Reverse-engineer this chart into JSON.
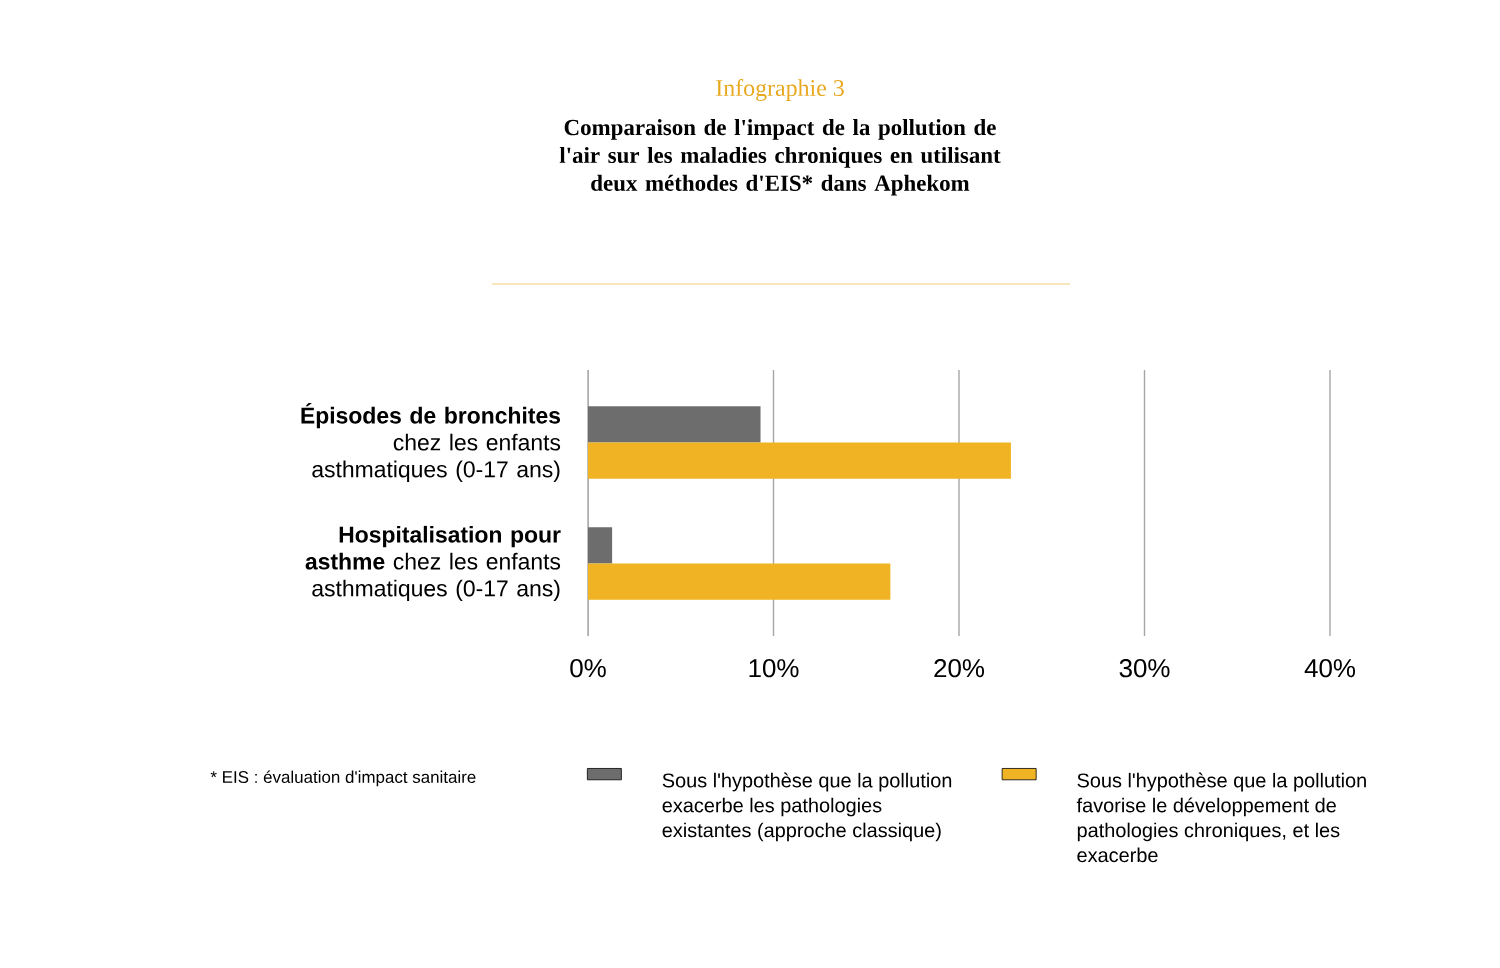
{
  "chart_data": {
    "type": "bar",
    "orientation": "horizontal",
    "title": "Infographie 3",
    "subtitle": "Comparaison de l'impact de la pollution de l'air sur les maladies chroniques en utilisant deux méthodes d'EIS* dans Aphekom",
    "categories": [
      "**Épisodes de bronchites** chez les enfants asthmatiques (0-17 ans)",
      "**Hospitalisation pour asthme** chez les enfants asthmatiques (0-17 ans)"
    ],
    "series": [
      {
        "name": "Sous l'hypothèse que la pollution exacerbe les pathologies existantes (approche classique)",
        "color": "#6d6d6d",
        "values": [
          9.3,
          1.3
        ]
      },
      {
        "name": "Sous l'hypothèse que la pollution favorise le développement de pathologies chroniques, et les exacerbe",
        "color": "#f0b323",
        "values": [
          22.8,
          16.3
        ]
      }
    ],
    "xlim": [
      0,
      40
    ],
    "xticks": [
      {
        "value": 0,
        "label": "0%"
      },
      {
        "value": 10,
        "label": "10%"
      },
      {
        "value": 20,
        "label": "20%"
      },
      {
        "value": 30,
        "label": "30%"
      },
      {
        "value": 40,
        "label": "40%"
      }
    ],
    "grid": "x",
    "legend": "bottom",
    "annotations": [
      "* EIS : évaluation d'impact sanitaire"
    ]
  }
}
